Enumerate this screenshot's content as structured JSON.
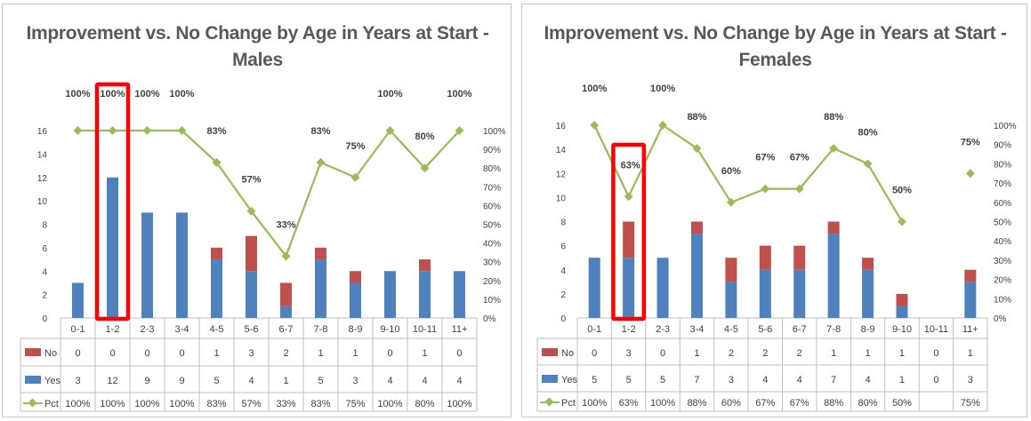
{
  "colors": {
    "no": "#c0504d",
    "yes": "#4f81bd",
    "pct": "#9bbb59",
    "highlight": "#ff0000",
    "text": "#404040",
    "grid": "#d9d9d9"
  },
  "chart_data": [
    {
      "type": "bar",
      "stacked": true,
      "title_line1": "Improvement vs. No Change by Age in Years at Start -",
      "title_line2": "Males",
      "categories": [
        "0-1",
        "1-2",
        "2-3",
        "3-4",
        "4-5",
        "5-6",
        "6-7",
        "7-8",
        "8-9",
        "9-10",
        "10-11",
        "11+"
      ],
      "series": [
        {
          "name": "No",
          "values": [
            0,
            0,
            0,
            0,
            1,
            3,
            2,
            1,
            1,
            0,
            1,
            0
          ]
        },
        {
          "name": "Yes",
          "values": [
            3,
            12,
            9,
            9,
            5,
            4,
            1,
            5,
            3,
            4,
            4,
            4
          ]
        },
        {
          "name": "Pct",
          "values": [
            100,
            100,
            100,
            100,
            83,
            57,
            33,
            83,
            75,
            100,
            80,
            100
          ]
        }
      ],
      "pct_labels": [
        "100%",
        "100%",
        "100%",
        "100%",
        "83%",
        "57%",
        "33%",
        "83%",
        "75%",
        "100%",
        "80%",
        "100%"
      ],
      "y_ticks": [
        "0",
        "2",
        "4",
        "6",
        "8",
        "10",
        "12",
        "14",
        "16"
      ],
      "y2_ticks": [
        "0%",
        "10%",
        "20%",
        "30%",
        "40%",
        "50%",
        "60%",
        "70%",
        "80%",
        "90%",
        "100%"
      ],
      "ylim": [
        0,
        16
      ],
      "y2lim": [
        0,
        100
      ],
      "highlight_category": "1-2",
      "grid": false,
      "legend": "data-table"
    },
    {
      "type": "bar",
      "stacked": true,
      "title_line1": "Improvement vs. No Change by Age in Years at Start -",
      "title_line2": "Females",
      "categories": [
        "0-1",
        "1-2",
        "2-3",
        "3-4",
        "4-5",
        "5-6",
        "6-7",
        "7-8",
        "8-9",
        "9-10",
        "10-11",
        "11+"
      ],
      "series": [
        {
          "name": "No",
          "values": [
            0,
            3,
            0,
            1,
            2,
            2,
            2,
            1,
            1,
            1,
            0,
            1
          ]
        },
        {
          "name": "Yes",
          "values": [
            5,
            5,
            5,
            7,
            3,
            4,
            4,
            7,
            4,
            1,
            0,
            3
          ]
        },
        {
          "name": "Pct",
          "values": [
            100,
            63,
            100,
            88,
            60,
            67,
            67,
            88,
            80,
            50,
            null,
            75
          ]
        }
      ],
      "pct_labels": [
        "100%",
        "63%",
        "100%",
        "88%",
        "60%",
        "67%",
        "67%",
        "88%",
        "80%",
        "50%",
        "",
        "75%"
      ],
      "y_ticks": [
        "0",
        "2",
        "4",
        "6",
        "8",
        "10",
        "12",
        "14",
        "16"
      ],
      "y2_ticks": [
        "0%",
        "10%",
        "20%",
        "30%",
        "40%",
        "50%",
        "60%",
        "70%",
        "80%",
        "90%",
        "100%"
      ],
      "ylim": [
        0,
        16
      ],
      "y2lim": [
        0,
        100
      ],
      "highlight_category": "1-2",
      "grid": false,
      "legend": "data-table"
    }
  ]
}
